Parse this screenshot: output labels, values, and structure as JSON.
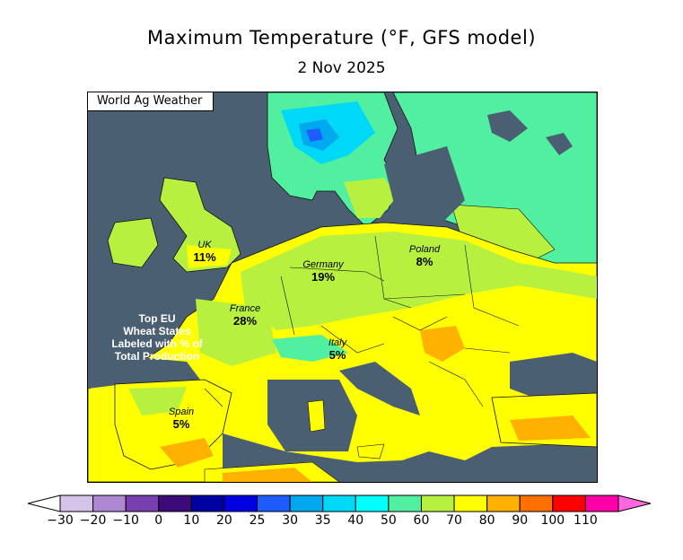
{
  "title": "Maximum Temperature (°F, GFS model)",
  "subtitle": "2 Nov 2025",
  "credit": "World Ag Weather",
  "note_lines": [
    "Top EU",
    "Wheat States",
    "Labeled with % of",
    "Total Production"
  ],
  "regions": [
    {
      "name": "UK",
      "pct": "11%"
    },
    {
      "name": "Germany",
      "pct": "19%"
    },
    {
      "name": "Poland",
      "pct": "8%"
    },
    {
      "name": "France",
      "pct": "28%"
    },
    {
      "name": "Italy",
      "pct": "5%"
    },
    {
      "name": "Spain",
      "pct": "5%"
    }
  ],
  "legend": {
    "ticks": [
      "−30",
      "−20",
      "−10",
      "0",
      "10",
      "20",
      "25",
      "30",
      "35",
      "40",
      "50",
      "60",
      "70",
      "80",
      "90",
      "100",
      "110"
    ],
    "colors": [
      "#d6c3ea",
      "#ae88d2",
      "#7a3fae",
      "#3d0a7a",
      "#0000a0",
      "#0000e0",
      "#1e5cff",
      "#00a8f0",
      "#00d8f8",
      "#00ffff",
      "#50f0a0",
      "#b8f040",
      "#ffff00",
      "#ffb000",
      "#ff7000",
      "#ff0000",
      "#ff00a8"
    ],
    "under_color": "#ffffff",
    "over_color": "#ff66e0"
  }
}
